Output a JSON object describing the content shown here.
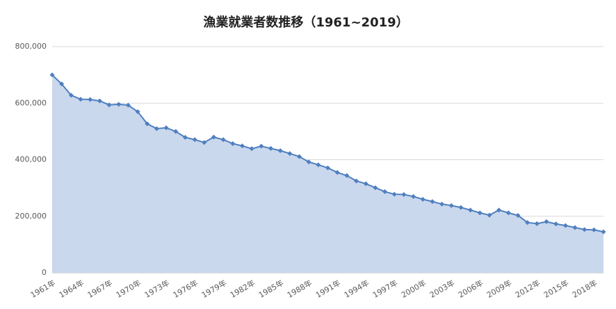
{
  "chart_data": {
    "type": "area",
    "title": "漁業就業者数推移（1961~2019）",
    "categories": [
      "1961年",
      null,
      null,
      "1964年",
      null,
      null,
      "1967年",
      null,
      null,
      "1970年",
      null,
      null,
      "1973年",
      null,
      null,
      "1976年",
      null,
      null,
      "1979年",
      null,
      null,
      "1982年",
      null,
      null,
      "1985年",
      null,
      null,
      "1988年",
      null,
      null,
      "1991年",
      null,
      null,
      "1994年",
      null,
      null,
      "1997年",
      null,
      null,
      "2000年",
      null,
      null,
      "2003年",
      null,
      null,
      "2006年",
      null,
      null,
      "2009年",
      null,
      null,
      "2012年",
      null,
      null,
      "2015年",
      null,
      null,
      "2018年",
      null
    ],
    "series": [
      {
        "name": "漁業就業者数",
        "color": "#4f7fc0",
        "fill": "#cad8ed",
        "values": [
          700000,
          668000,
          628000,
          614000,
          613000,
          608000,
          594000,
          596000,
          593000,
          570000,
          527000,
          510000,
          513000,
          500000,
          479000,
          471000,
          461000,
          480000,
          471000,
          457000,
          449000,
          439000,
          448000,
          440000,
          432000,
          422000,
          411000,
          392000,
          382000,
          371000,
          355000,
          344000,
          325000,
          315000,
          301000,
          287000,
          278000,
          277000,
          270000,
          260000,
          252000,
          243000,
          238000,
          231000,
          222000,
          212000,
          204000,
          222000,
          212000,
          203000,
          178000,
          174000,
          181000,
          173000,
          167000,
          160000,
          153000,
          152000,
          145000
        ]
      }
    ],
    "ylim": [
      0,
      800000
    ],
    "yticks": [
      0,
      {
        "value": 200000,
        "label": "200,000"
      },
      {
        "value": 400000,
        "label": "400,000"
      },
      {
        "value": 600000,
        "label": "600,000"
      },
      {
        "value": 800000,
        "label": "800,000"
      }
    ],
    "grid": true
  }
}
